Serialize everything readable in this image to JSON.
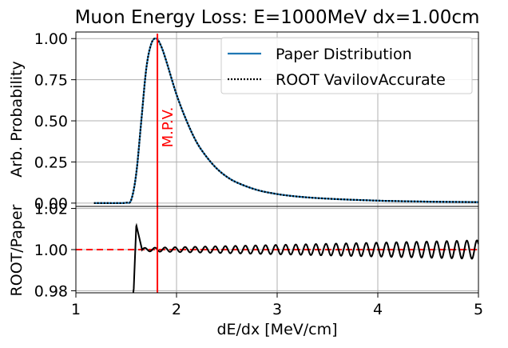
{
  "chart_data": [
    {
      "type": "line",
      "title": "Muon Energy Loss: E=1000MeV dx=1.00cm",
      "xlabel": "",
      "ylabel": "Arb. Probability",
      "xlim": [
        1,
        5
      ],
      "ylim": [
        -0.02,
        1.04
      ],
      "yticks": [
        "0.00",
        "0.25",
        "0.50",
        "0.75",
        "1.00"
      ],
      "grid": true,
      "legend_position": "top-right",
      "series": [
        {
          "name": "Paper Distribution",
          "style": "solid",
          "color": "#1f77b4",
          "x": [
            1.18,
            1.3,
            1.4,
            1.5,
            1.55,
            1.6,
            1.65,
            1.7,
            1.75,
            1.8,
            1.85,
            1.9,
            2.0,
            2.1,
            2.2,
            2.3,
            2.4,
            2.5,
            2.6,
            2.8,
            3.0,
            3.2,
            3.5,
            4.0,
            4.5,
            5.0
          ],
          "y": [
            0.0,
            0.0,
            0.0,
            0.002,
            0.02,
            0.18,
            0.5,
            0.82,
            0.97,
            1.0,
            0.95,
            0.86,
            0.66,
            0.5,
            0.37,
            0.28,
            0.21,
            0.16,
            0.125,
            0.08,
            0.055,
            0.04,
            0.027,
            0.015,
            0.009,
            0.006
          ]
        },
        {
          "name": "ROOT VavilovAccurate",
          "style": "dotted",
          "color": "#000000",
          "x": [
            1.18,
            1.3,
            1.4,
            1.5,
            1.55,
            1.6,
            1.65,
            1.7,
            1.75,
            1.8,
            1.85,
            1.9,
            2.0,
            2.1,
            2.2,
            2.3,
            2.4,
            2.5,
            2.6,
            2.8,
            3.0,
            3.2,
            3.5,
            4.0,
            4.5,
            5.0
          ],
          "y": [
            0.0,
            0.0,
            0.0,
            0.002,
            0.02,
            0.18,
            0.5,
            0.82,
            0.97,
            1.0,
            0.95,
            0.86,
            0.66,
            0.5,
            0.37,
            0.28,
            0.21,
            0.16,
            0.125,
            0.08,
            0.055,
            0.04,
            0.027,
            0.015,
            0.009,
            0.006
          ]
        }
      ],
      "annotations": [
        {
          "text": "M.P.V.",
          "x": 1.81,
          "color": "#ff0000"
        }
      ]
    },
    {
      "type": "line",
      "title": "",
      "xlabel": "dE/dx [MeV/cm]",
      "ylabel": "ROOT/Paper",
      "xlim": [
        1,
        5
      ],
      "ylim": [
        0.979,
        1.021
      ],
      "xticks": [
        "1",
        "2",
        "3",
        "4",
        "5"
      ],
      "yticks": [
        "0.98",
        "1.00",
        "1.02"
      ],
      "grid": true,
      "reference_line": {
        "y": 1.0,
        "style": "dashed",
        "color": "#ff0000"
      },
      "mpv_line": {
        "x": 1.81,
        "color": "#ff0000"
      },
      "ratio": {
        "x_start": 1.57,
        "x_end": 5.0,
        "start_value": 0.979,
        "peak_x": 1.6,
        "peak_value": 1.012,
        "oscillation_period": 0.1,
        "amplitude_at_2": 0.0008,
        "amplitude_at_5": 0.0045
      }
    }
  ]
}
